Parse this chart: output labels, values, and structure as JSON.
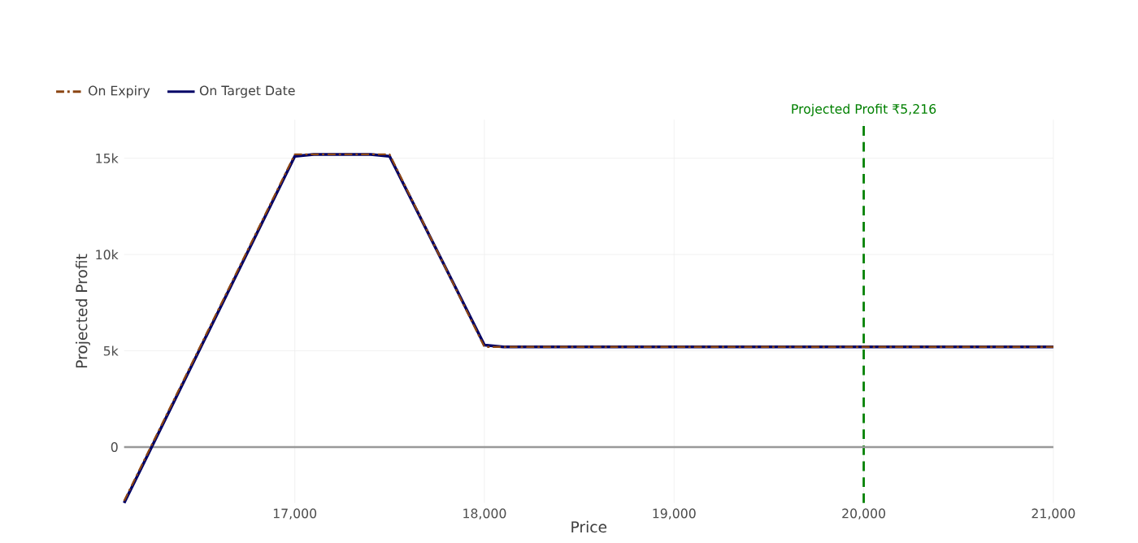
{
  "chart_data": {
    "type": "line",
    "xlabel": "Price",
    "ylabel": "Projected Profit",
    "series": [
      {
        "name": "On Expiry",
        "color": "#8b4513",
        "line_style": "dashdot",
        "x": [
          16100,
          17000,
          17500,
          18000,
          21000
        ],
        "values": [
          -2800,
          15200,
          15200,
          5200,
          5200
        ]
      },
      {
        "name": "On Target Date",
        "color": "#000066",
        "line_style": "solid",
        "x": [
          16100,
          17000,
          17100,
          17400,
          17500,
          18000,
          18100,
          21000
        ],
        "values": [
          -2900,
          15100,
          15200,
          15200,
          15100,
          5300,
          5200,
          5200
        ]
      }
    ],
    "xlim": [
      16100,
      21000
    ],
    "ylim": [
      -2900,
      17000
    ],
    "xticks": [
      {
        "value": 17000,
        "label": "17,000"
      },
      {
        "value": 18000,
        "label": "18,000"
      },
      {
        "value": 19000,
        "label": "19,000"
      },
      {
        "value": 20000,
        "label": "20,000"
      },
      {
        "value": 21000,
        "label": "21,000"
      }
    ],
    "yticks": [
      {
        "value": 0,
        "label": "0"
      },
      {
        "value": 5000,
        "label": "5k"
      },
      {
        "value": 10000,
        "label": "10k"
      },
      {
        "value": 15000,
        "label": "15k"
      }
    ],
    "ref_lines": [
      {
        "axis": "x",
        "value": 20000,
        "label": "Projected Profit ₹5,216",
        "color": "#008000",
        "line_style": "dashed"
      },
      {
        "axis": "y",
        "value": 0,
        "color": "#999999",
        "line_style": "solid"
      }
    ],
    "grid": true,
    "legend": "top left",
    "marker": "none"
  }
}
